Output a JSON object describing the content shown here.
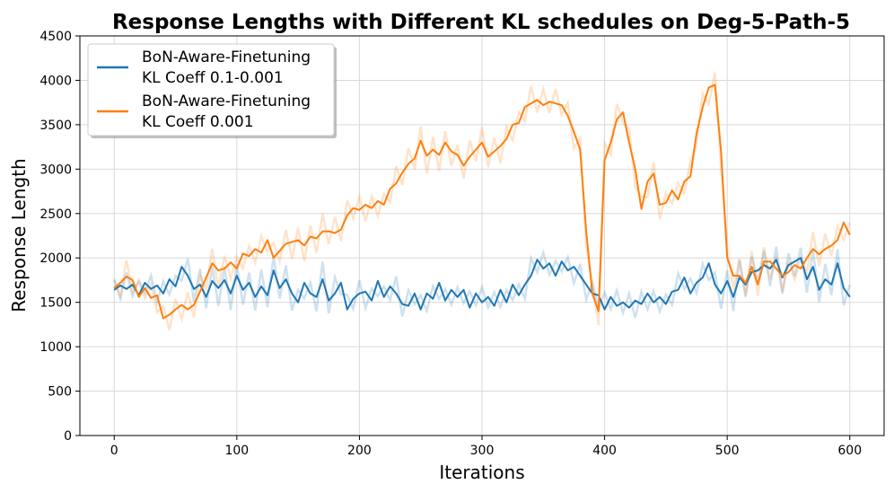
{
  "chart_data": {
    "type": "line",
    "title": "Response Lengths with Different KL schedules on Deg-5-Path-5",
    "xlabel": "Iterations",
    "ylabel": "Response Length",
    "xlim": [
      -28,
      628
    ],
    "ylim": [
      0,
      4500
    ],
    "xticks": [
      0,
      100,
      200,
      300,
      400,
      500,
      600
    ],
    "yticks": [
      0,
      500,
      1000,
      1500,
      2000,
      2500,
      3000,
      3500,
      4000,
      4500
    ],
    "grid": true,
    "legend_position": "top-left",
    "series": [
      {
        "name": "BoN-Aware-Finetuning",
        "name_line2": "KL Coeff 0.1-0.001",
        "color": "#1f77b4",
        "x": [
          0,
          5,
          10,
          15,
          20,
          25,
          30,
          35,
          40,
          45,
          50,
          55,
          60,
          65,
          70,
          75,
          80,
          85,
          90,
          95,
          100,
          105,
          110,
          115,
          120,
          125,
          130,
          135,
          140,
          145,
          150,
          155,
          160,
          165,
          170,
          175,
          180,
          185,
          190,
          195,
          200,
          205,
          210,
          215,
          220,
          225,
          230,
          235,
          240,
          245,
          250,
          255,
          260,
          265,
          270,
          275,
          280,
          285,
          290,
          295,
          300,
          305,
          310,
          315,
          320,
          325,
          330,
          335,
          340,
          345,
          350,
          355,
          360,
          365,
          370,
          375,
          380,
          385,
          390,
          395,
          400,
          405,
          410,
          415,
          420,
          425,
          430,
          435,
          440,
          445,
          450,
          455,
          460,
          465,
          470,
          475,
          480,
          485,
          490,
          495,
          500,
          505,
          510,
          515,
          520,
          525,
          530,
          535,
          540,
          545,
          550,
          555,
          560,
          565,
          570,
          575,
          580,
          585,
          590,
          595,
          600
        ],
        "values": [
          1640,
          1690,
          1650,
          1700,
          1580,
          1720,
          1650,
          1690,
          1600,
          1760,
          1680,
          1900,
          1800,
          1650,
          1700,
          1560,
          1740,
          1660,
          1750,
          1600,
          1800,
          1640,
          1720,
          1560,
          1680,
          1580,
          1860,
          1660,
          1760,
          1600,
          1500,
          1720,
          1600,
          1560,
          1760,
          1520,
          1600,
          1720,
          1420,
          1540,
          1600,
          1620,
          1520,
          1740,
          1560,
          1680,
          1600,
          1480,
          1460,
          1600,
          1420,
          1600,
          1540,
          1720,
          1520,
          1640,
          1560,
          1640,
          1440,
          1600,
          1500,
          1560,
          1460,
          1640,
          1500,
          1700,
          1580,
          1700,
          1800,
          1980,
          1880,
          1940,
          1800,
          1960,
          1860,
          1900,
          1800,
          1700,
          1600,
          1580,
          1420,
          1560,
          1460,
          1500,
          1440,
          1520,
          1480,
          1600,
          1500,
          1560,
          1480,
          1620,
          1640,
          1780,
          1600,
          1720,
          1780,
          1940,
          1700,
          1600,
          1740,
          1560,
          1780,
          1700,
          1840,
          1860,
          1920,
          1880,
          1980,
          1780,
          1920,
          1960,
          2000,
          1760,
          1900,
          1640,
          1760,
          1700,
          1940,
          1660,
          1560
        ]
      },
      {
        "name": "BoN-Aware-Finetuning",
        "name_line2": "KL Coeff 0.001",
        "color": "#ff7f0e",
        "x": [
          0,
          5,
          10,
          15,
          20,
          25,
          30,
          35,
          40,
          45,
          50,
          55,
          60,
          65,
          70,
          75,
          80,
          85,
          90,
          95,
          100,
          105,
          110,
          115,
          120,
          125,
          130,
          135,
          140,
          145,
          150,
          155,
          160,
          165,
          170,
          175,
          180,
          185,
          190,
          195,
          200,
          205,
          210,
          215,
          220,
          225,
          230,
          235,
          240,
          245,
          250,
          255,
          260,
          265,
          270,
          275,
          280,
          285,
          290,
          295,
          300,
          305,
          310,
          315,
          320,
          325,
          330,
          335,
          340,
          345,
          350,
          355,
          360,
          365,
          370,
          375,
          380,
          385,
          390,
          395,
          400,
          405,
          410,
          415,
          420,
          425,
          430,
          435,
          440,
          445,
          450,
          455,
          460,
          465,
          470,
          475,
          480,
          485,
          490,
          495,
          500,
          505,
          510,
          515,
          520,
          525,
          530,
          535,
          540,
          545,
          550,
          555,
          560,
          565,
          570,
          575,
          580,
          585,
          590,
          595,
          600
        ],
        "values": [
          1660,
          1720,
          1790,
          1750,
          1560,
          1660,
          1550,
          1580,
          1320,
          1360,
          1420,
          1470,
          1420,
          1470,
          1620,
          1780,
          1940,
          1860,
          1880,
          1950,
          1880,
          2050,
          2020,
          2100,
          2060,
          2200,
          2000,
          2080,
          2160,
          2180,
          2200,
          2140,
          2240,
          2220,
          2300,
          2300,
          2280,
          2320,
          2480,
          2560,
          2540,
          2600,
          2560,
          2640,
          2600,
          2780,
          2840,
          2960,
          3060,
          3120,
          3320,
          3150,
          3220,
          3160,
          3300,
          3200,
          3160,
          3040,
          3140,
          3220,
          3300,
          3140,
          3200,
          3260,
          3340,
          3500,
          3520,
          3700,
          3740,
          3780,
          3720,
          3760,
          3740,
          3720,
          3600,
          3420,
          3220,
          2300,
          1600,
          1400,
          3100,
          3300,
          3560,
          3640,
          3300,
          3000,
          2550,
          2860,
          2950,
          2600,
          2620,
          2760,
          2660,
          2860,
          2920,
          3400,
          3700,
          3920,
          3950,
          3200,
          2000,
          1800,
          1800,
          1720,
          1900,
          1700,
          1960,
          1960,
          1880,
          1800,
          1840,
          1920,
          1880,
          2000,
          2100,
          2040,
          2100,
          2140,
          2200,
          2400,
          2260
        ]
      }
    ]
  }
}
